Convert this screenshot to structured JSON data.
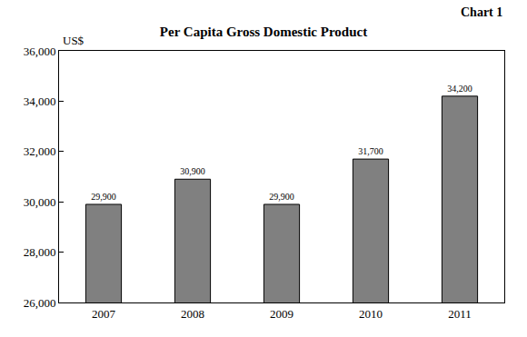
{
  "chart_data": {
    "type": "bar",
    "title": "Per Capita Gross Domestic Product",
    "annotations": [
      "Chart 1"
    ],
    "ylabel": "US$",
    "categories": [
      "2007",
      "2008",
      "2009",
      "2010",
      "2011"
    ],
    "values": [
      29900,
      30900,
      29900,
      31700,
      34200
    ],
    "value_labels": [
      "29,900",
      "30,900",
      "29,900",
      "31,700",
      "34,200"
    ],
    "data_labels": true,
    "color": "#808080",
    "grid": false,
    "ylim": [
      26000,
      36000
    ],
    "yticks": [
      {
        "value": 26000,
        "label": "26,000"
      },
      {
        "value": 28000,
        "label": "28,000"
      },
      {
        "value": 30000,
        "label": "30,000"
      },
      {
        "value": 32000,
        "label": "32,000"
      },
      {
        "value": 34000,
        "label": "34,000"
      },
      {
        "value": 36000,
        "label": "36,000"
      }
    ]
  }
}
